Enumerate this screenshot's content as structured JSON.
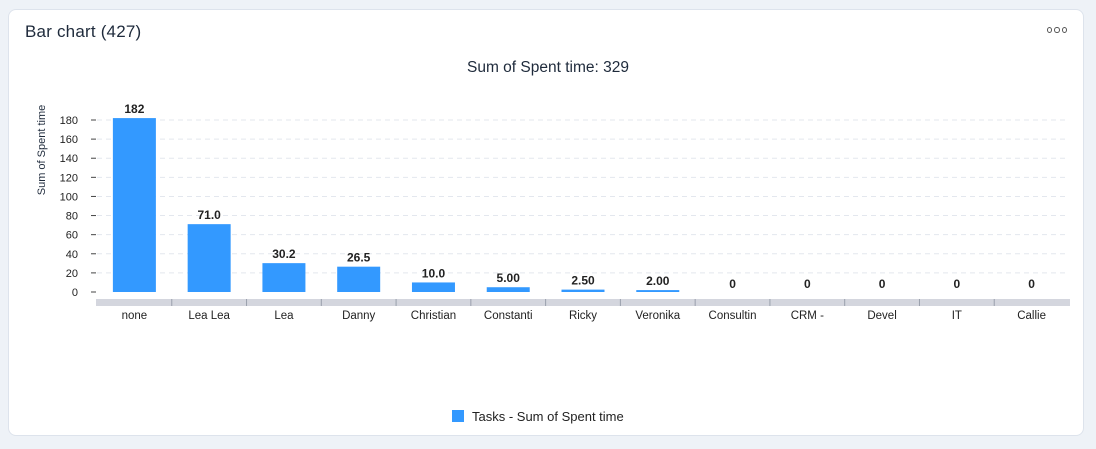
{
  "card": {
    "title": "Bar chart (427)",
    "menu_icon": "more-horizontal-icon"
  },
  "chart_data": {
    "type": "bar",
    "title": "Sum of Spent time: 329",
    "xlabel": "",
    "ylabel": "Sum of Spent time",
    "categories": [
      "none",
      "Lea Lea",
      "Lea",
      "Danny",
      "Christian",
      "Constanti",
      "Ricky",
      "Veronika",
      "Consultin",
      "CRM -",
      "Devel",
      "IT",
      "Callie"
    ],
    "series": [
      {
        "name": "Tasks - Sum of Spent time",
        "values": [
          182,
          71.0,
          30.2,
          26.5,
          10.0,
          5.0,
          2.5,
          2.0,
          0,
          0,
          0,
          0,
          0
        ],
        "labels": [
          "182",
          "71.0",
          "30.2",
          "26.5",
          "10.0",
          "5.00",
          "2.50",
          "2.00",
          "0",
          "0",
          "0",
          "0",
          "0"
        ],
        "color": "#3399ff"
      }
    ],
    "yticks": [
      0,
      20,
      40,
      60,
      80,
      100,
      120,
      140,
      160,
      180
    ],
    "ylim": [
      0,
      182
    ],
    "grid": true,
    "legend_position": "bottom"
  }
}
